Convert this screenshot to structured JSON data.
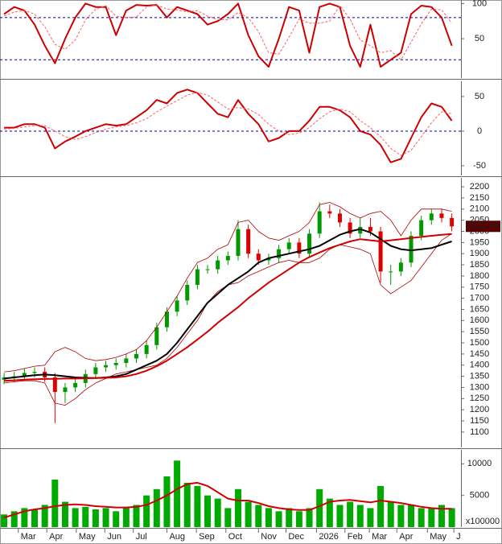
{
  "chart_data": [
    {
      "type": "line",
      "ylim": [
        -6,
        105
      ],
      "yticks": [
        50,
        100
      ],
      "xlim": [
        -0.4,
        44.9
      ],
      "hlines": [
        20,
        80
      ],
      "hline_color": "#0000aa",
      "series": [
        {
          "color": "#cc0000",
          "width": 2,
          "values": [
            85,
            95,
            90,
            70,
            40,
            15,
            50,
            80,
            100,
            95,
            95,
            55,
            90,
            98,
            97,
            98,
            80,
            95,
            90,
            85,
            70,
            75,
            85,
            100,
            55,
            25,
            10,
            50,
            95,
            90,
            30,
            95,
            100,
            95,
            40,
            10,
            70,
            10,
            20,
            30,
            85,
            97,
            95,
            80,
            40
          ]
        },
        {
          "color": "#ff6060",
          "width": 1,
          "dashed": true,
          "values": [
            82,
            88,
            90,
            85,
            67,
            42,
            35,
            48,
            77,
            92,
            97,
            82,
            80,
            81,
            95,
            98,
            92,
            91,
            88,
            90,
            82,
            77,
            77,
            87,
            80,
            60,
            30,
            28,
            52,
            78,
            72,
            72,
            75,
            97,
            78,
            48,
            40,
            30,
            33,
            20,
            45,
            71,
            92,
            91,
            72
          ]
        }
      ]
    },
    {
      "type": "line",
      "ylim": [
        -64,
        72
      ],
      "yticks": [
        -50,
        0,
        50
      ],
      "xlim": [
        -0.4,
        44.9
      ],
      "hlines": [
        0
      ],
      "hline_color": "#0000aa",
      "series": [
        {
          "color": "#cc0000",
          "width": 2,
          "values": [
            5,
            5,
            10,
            10,
            5,
            -25,
            -15,
            -8,
            0,
            5,
            10,
            8,
            10,
            20,
            30,
            45,
            40,
            55,
            60,
            55,
            40,
            25,
            20,
            45,
            25,
            10,
            -15,
            -10,
            0,
            0,
            15,
            35,
            35,
            30,
            20,
            0,
            -5,
            -20,
            -45,
            -40,
            -10,
            20,
            40,
            35,
            15
          ]
        },
        {
          "color": "#ff6060",
          "width": 1,
          "dashed": true,
          "values": [
            3,
            4,
            6,
            8,
            8,
            0,
            -8,
            -12,
            -8,
            -2,
            3,
            6,
            8,
            12,
            18,
            28,
            36,
            44,
            52,
            56,
            52,
            42,
            32,
            34,
            32,
            24,
            10,
            0,
            -5,
            -3,
            5,
            18,
            28,
            32,
            28,
            15,
            5,
            -8,
            -25,
            -35,
            -28,
            -8,
            12,
            28,
            25
          ]
        }
      ]
    },
    {
      "type": "candlestick",
      "ylim": [
        1031,
        2240
      ],
      "xlim": [
        -0.4,
        44.9
      ],
      "yticks": [
        1100,
        1150,
        1200,
        1250,
        1300,
        1350,
        1400,
        1450,
        1500,
        1550,
        1600,
        1650,
        1700,
        1750,
        1800,
        1850,
        1900,
        1950,
        2000,
        2050,
        2100,
        2150,
        2200
      ],
      "up_color": "#009900",
      "down_color": "#dd0000",
      "open": [
        1335,
        1345,
        1350,
        1365,
        1370,
        1345,
        1280,
        1300,
        1320,
        1360,
        1390,
        1400,
        1410,
        1430,
        1450,
        1490,
        1570,
        1640,
        1690,
        1760,
        1830,
        1830,
        1870,
        1890,
        2010,
        1900,
        1870,
        1880,
        1920,
        1950,
        1900,
        1990,
        2090,
        2080,
        2040,
        1990,
        2020,
        2000,
        1820,
        1820,
        1860,
        1980,
        2050,
        2080,
        2060
      ],
      "high": [
        1365,
        1370,
        1385,
        1390,
        1390,
        1365,
        1320,
        1340,
        1380,
        1410,
        1420,
        1430,
        1450,
        1470,
        1510,
        1590,
        1660,
        1710,
        1780,
        1850,
        1850,
        1890,
        1910,
        2050,
        2030,
        1920,
        1900,
        1940,
        1970,
        1970,
        2010,
        2130,
        2120,
        2100,
        2060,
        2060,
        2060,
        2020,
        1850,
        1880,
        2000,
        2070,
        2100,
        2100,
        2080
      ],
      "low": [
        1315,
        1325,
        1330,
        1345,
        1325,
        1140,
        1230,
        1280,
        1300,
        1340,
        1370,
        1380,
        1390,
        1410,
        1430,
        1470,
        1550,
        1620,
        1670,
        1740,
        1810,
        1810,
        1850,
        1870,
        1880,
        1850,
        1850,
        1860,
        1900,
        1880,
        1880,
        1970,
        2060,
        2020,
        1970,
        1970,
        1980,
        1770,
        1760,
        1800,
        1840,
        1960,
        2030,
        2040,
        2000
      ],
      "close": [
        1345,
        1350,
        1365,
        1370,
        1345,
        1280,
        1300,
        1320,
        1360,
        1390,
        1400,
        1410,
        1430,
        1450,
        1490,
        1570,
        1640,
        1690,
        1760,
        1830,
        1830,
        1870,
        1890,
        2010,
        1900,
        1870,
        1880,
        1920,
        1950,
        1900,
        1990,
        2090,
        2080,
        2040,
        1990,
        2020,
        2000,
        1820,
        1820,
        1860,
        1980,
        2050,
        2080,
        2060,
        2022.46
      ],
      "series": [
        {
          "color": "#b00000",
          "width": 0.8,
          "values": [
            1370,
            1375,
            1385,
            1395,
            1400,
            1460,
            1480,
            1460,
            1430,
            1420,
            1425,
            1435,
            1450,
            1470,
            1510,
            1570,
            1640,
            1710,
            1790,
            1860,
            1880,
            1920,
            1940,
            2040,
            2050,
            2000,
            1970,
            1960,
            1980,
            2000,
            2040,
            2120,
            2130,
            2110,
            2080,
            2060,
            2080,
            2090,
            2050,
            1980,
            2050,
            2100,
            2100,
            2100,
            2090
          ]
        },
        {
          "color": "#b00000",
          "width": 0.8,
          "values": [
            1320,
            1325,
            1330,
            1330,
            1320,
            1230,
            1220,
            1250,
            1290,
            1320,
            1340,
            1360,
            1370,
            1380,
            1390,
            1400,
            1430,
            1480,
            1540,
            1600,
            1680,
            1730,
            1760,
            1770,
            1800,
            1820,
            1840,
            1860,
            1870,
            1860,
            1860,
            1880,
            1920,
            1940,
            1930,
            1920,
            1900,
            1760,
            1720,
            1750,
            1780,
            1840,
            1900,
            1960,
            1990
          ]
        },
        {
          "color": "#000000",
          "width": 2,
          "values": [
            1340,
            1345,
            1350,
            1355,
            1358,
            1355,
            1350,
            1345,
            1343,
            1342,
            1345,
            1350,
            1360,
            1380,
            1400,
            1420,
            1450,
            1500,
            1560,
            1620,
            1680,
            1720,
            1760,
            1790,
            1820,
            1860,
            1880,
            1890,
            1900,
            1910,
            1920,
            1935,
            1960,
            1985,
            2000,
            2010,
            1995,
            1965,
            1935,
            1920,
            1915,
            1920,
            1925,
            1940,
            1955
          ]
        },
        {
          "color": "#d00000",
          "width": 2,
          "values": [
            1330,
            1332,
            1335,
            1337,
            1338,
            1339,
            1340,
            1340,
            1341,
            1342,
            1343,
            1345,
            1350,
            1360,
            1375,
            1395,
            1420,
            1450,
            1480,
            1515,
            1550,
            1590,
            1625,
            1660,
            1700,
            1735,
            1770,
            1800,
            1830,
            1860,
            1885,
            1905,
            1925,
            1940,
            1955,
            1965,
            1960,
            1955,
            1960,
            1965,
            1970,
            1975,
            1980,
            1985,
            1988
          ]
        }
      ]
    },
    {
      "type": "bar",
      "ylim": [
        0,
        12200
      ],
      "yticks": [
        5000,
        10000
      ],
      "xlim": [
        -0.4,
        44.9
      ],
      "unit_label": "x100000",
      "color": "#00aa00",
      "values": [
        2000,
        2500,
        3000,
        2800,
        3500,
        7500,
        4000,
        3000,
        3200,
        2800,
        3000,
        2500,
        3000,
        3500,
        5000,
        6000,
        8000,
        10500,
        7000,
        6500,
        5000,
        4500,
        3000,
        6000,
        4000,
        3500,
        3000,
        2500,
        3000,
        2500,
        3000,
        6000,
        4500,
        3500,
        4000,
        3500,
        3000,
        6500,
        4000,
        3500,
        3500,
        3000,
        3000,
        3500,
        3000
      ],
      "series": [
        {
          "color": "#d00000",
          "width": 2,
          "values": [
            1500,
            2000,
            2500,
            2800,
            3000,
            3300,
            3500,
            3600,
            3500,
            3300,
            3200,
            3100,
            3100,
            3200,
            3500,
            4200,
            5000,
            6000,
            6800,
            7000,
            6500,
            5500,
            4500,
            4200,
            4200,
            3800,
            3300,
            3000,
            2800,
            2700,
            2700,
            3300,
            4000,
            4200,
            4300,
            4100,
            3900,
            4200,
            4000,
            3800,
            3500,
            3200,
            3000,
            2900,
            2900
          ]
        }
      ],
      "xticks": [
        {
          "value": 1.4,
          "label": "Mar"
        },
        {
          "value": 4.2,
          "label": "Apr"
        },
        {
          "value": 7.1,
          "label": "May"
        },
        {
          "value": 9.9,
          "label": "Jun"
        },
        {
          "value": 12.7,
          "label": "Jul"
        },
        {
          "value": 16.0,
          "label": "Aug"
        },
        {
          "value": 18.9,
          "label": "Sep"
        },
        {
          "value": 21.8,
          "label": "Oct"
        },
        {
          "value": 25.0,
          "label": "Nov"
        },
        {
          "value": 27.7,
          "label": "Dec"
        },
        2026,
        {
          "value": 33.5,
          "label": "Feb"
        },
        {
          "value": 35.9,
          "label": "Mar"
        },
        {
          "value": 38.6,
          "label": "Apr"
        },
        {
          "value": 41.6,
          "label": "May"
        },
        {
          "value": 44.2,
          "label": "J"
        }
      ],
      "xtick_2026_value": 30.7
    }
  ]
}
